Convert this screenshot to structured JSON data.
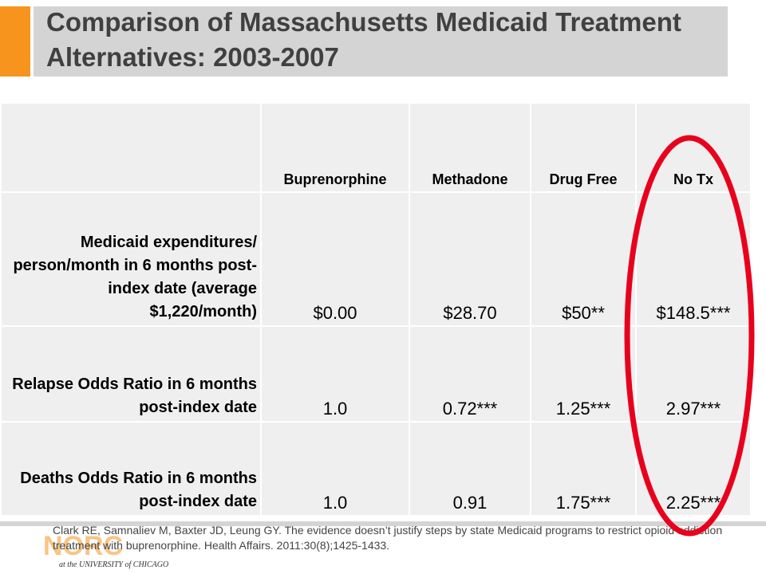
{
  "slide": {
    "title": "Comparison of Massachusetts Medicaid Treatment Alternatives: 2003-2007"
  },
  "table": {
    "columns": [
      "",
      "Buprenorphine",
      "Methadone",
      "Drug Free",
      "No Tx"
    ],
    "rows": [
      {
        "label": "Medicaid expenditures/ person/month in 6 months post-index date (average $1,220/month)",
        "values": [
          "$0.00",
          "$28.70",
          "$50**",
          "$148.5***"
        ]
      },
      {
        "label": "Relapse Odds Ratio in 6 months post-index date",
        "values": [
          "1.0",
          "0.72***",
          "1.25***",
          "2.97***"
        ]
      },
      {
        "label": "Deaths Odds Ratio in 6 months post-index date",
        "values": [
          "1.0",
          "0.91",
          "1.75***",
          "2.25***"
        ]
      }
    ]
  },
  "citation": "Clark RE, Samnaliev M, Baxter JD, Leung GY. The evidence doesn’t justify steps by state Medicaid programs to restrict opioid addiction treatment with buprenorphine. Health Affairs. 2011:30(8);1425-1433.",
  "logo": {
    "name": "NORC",
    "tagline": "at the UNIVERSITY of CHICAGO"
  },
  "colors": {
    "accent": "#f7941d",
    "title_band": "#d4d4d4",
    "title_text": "#404040",
    "cell_bg": "#efefef",
    "highlight": "#e8001c"
  }
}
